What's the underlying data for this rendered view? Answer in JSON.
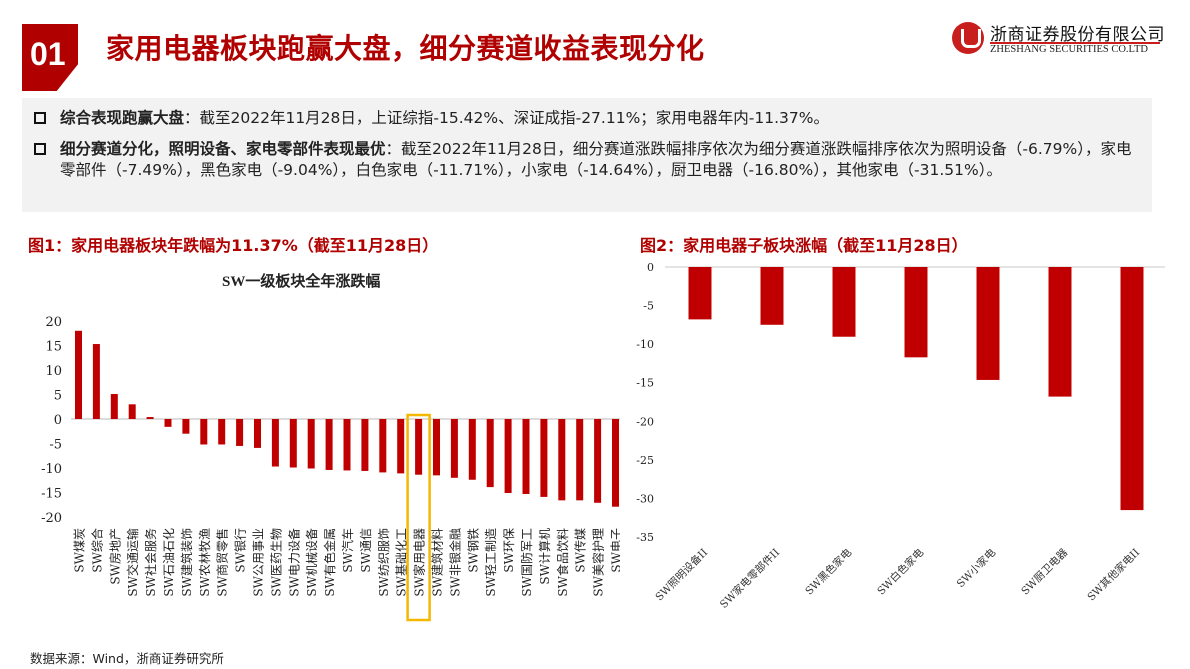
{
  "header": {
    "section_number": "01",
    "title": "家用电器板块跑赢大盘，细分赛道收益表现分化",
    "logo_cn": "浙商证券股份有限公司",
    "logo_en": "ZHESHANG SECURITIES CO.LTD"
  },
  "summary": {
    "bullets": [
      {
        "bold": "综合表现跑赢大盘",
        "text": "：截至2022年11月28日，上证综指-15.42%、深证成指-27.11%；家用电器年内-11.37%。"
      },
      {
        "bold": "细分赛道分化，照明设备、家电零部件表现最优",
        "text": "：截至2022年11月28日，细分赛道涨跌幅排序依次为细分赛道涨跌幅排序依次为照明设备（-6.79%），家电零部件（-7.49%），黑色家电（-9.04%），白色家电（-11.71%），小家电（-14.64%），厨卫电器（-16.80%），其他家电（-31.51%）。"
      }
    ]
  },
  "figure1": {
    "caption": "图1：家用电器板块年跌幅为11.37%（截至11月28日）",
    "highlight_color": "#f5b800"
  },
  "figure2": {
    "caption": "图2：家用电器子板块涨幅（截至11月28日）"
  },
  "footer": {
    "source": "数据来源：Wind，浙商证券研究所"
  },
  "colors": {
    "brand_red": "#b00000",
    "bar_red": "#c00000",
    "highlight": "#f5b800"
  },
  "chart_data": [
    {
      "type": "bar",
      "title": "SW一级板块全年涨跌幅",
      "xlabel": "",
      "ylabel": "",
      "ylim": [
        -20,
        20
      ],
      "yticks": [
        20,
        15,
        10,
        5,
        0,
        -5,
        -10,
        -15,
        -20
      ],
      "grid": false,
      "highlight_category": "SW家用电器",
      "categories": [
        "SW煤炭",
        "SW综合",
        "SW房地产",
        "SW交通运输",
        "SW社会服务",
        "SW石油石化",
        "SW建筑装饰",
        "SW农林牧渔",
        "SW商贸零售",
        "SW银行",
        "SW公用事业",
        "SW医药生物",
        "SW电力设备",
        "SW机械设备",
        "SW有色金属",
        "SW汽车",
        "SW通信",
        "SW纺织服饰",
        "SW基础化工",
        "SW家用电器",
        "SW建筑材料",
        "SW非银金融",
        "SW钢铁",
        "SW轻工制造",
        "SW环保",
        "SW国防军工",
        "SW计算机",
        "SW食品饮料",
        "SW传媒",
        "SW美容护理",
        "SW电子"
      ],
      "values": [
        18.0,
        15.3,
        5.1,
        3.0,
        0.4,
        -1.6,
        -3.0,
        -5.2,
        -5.2,
        -5.5,
        -5.9,
        -9.7,
        -9.9,
        -10.1,
        -10.4,
        -10.5,
        -10.6,
        -10.9,
        -11.1,
        -11.37,
        -11.5,
        -12.0,
        -12.4,
        -13.9,
        -15.1,
        -15.3,
        -15.9,
        -16.6,
        -16.6,
        -17.1,
        -17.9
      ]
    },
    {
      "type": "bar",
      "title": "",
      "xlabel": "",
      "ylabel": "",
      "ylim": [
        -35,
        0
      ],
      "yticks": [
        0,
        -5,
        -10,
        -15,
        -20,
        -25,
        -30,
        -35
      ],
      "grid": false,
      "categories": [
        "SW照明设备II",
        "SW家电零部件II",
        "SW黑色家电",
        "SW白色家电",
        "SW小家电",
        "SW厨卫电器",
        "SW其他家电II"
      ],
      "values": [
        -6.79,
        -7.49,
        -9.04,
        -11.71,
        -14.64,
        -16.8,
        -31.51
      ]
    }
  ]
}
